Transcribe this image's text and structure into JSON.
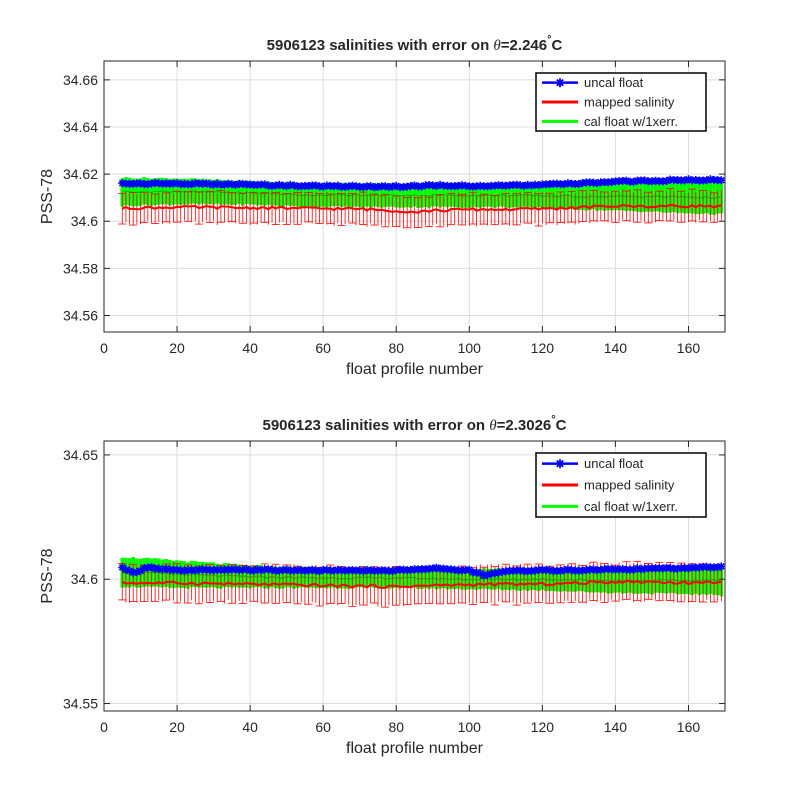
{
  "chart_data": [
    {
      "type": "line",
      "title_prefix": "5906123 salinities with error on ",
      "title_theta": "θ",
      "title_value": "=2.246",
      "title_degree": "°",
      "title_unit": "C",
      "xlabel": "float profile number",
      "ylabel": "PSS-78",
      "xlim": [
        0,
        170
      ],
      "ylim": [
        34.553,
        34.668
      ],
      "xticks": [
        0,
        20,
        40,
        60,
        80,
        100,
        120,
        140,
        160
      ],
      "yticks": [
        34.56,
        34.58,
        34.6,
        34.62,
        34.64,
        34.66
      ],
      "ytick_labels": [
        "34.56",
        "34.58",
        "34.6",
        "34.62",
        "34.64",
        "34.66"
      ],
      "grid": true,
      "legend_position": "top-right",
      "legend": [
        "uncal float",
        "mapped salinity",
        "cal float w/1xerr."
      ],
      "x_range": [
        5,
        169
      ],
      "series": [
        {
          "name": "uncal float",
          "color": "#0000ff",
          "style": "line-with-star-markers",
          "x": [
            5,
            20,
            40,
            55,
            70,
            80,
            90,
            100,
            110,
            120,
            130,
            140,
            150,
            160,
            169
          ],
          "values": [
            34.616,
            34.616,
            34.6155,
            34.615,
            34.6148,
            34.6147,
            34.6152,
            34.615,
            34.615,
            34.6155,
            34.616,
            34.6168,
            34.6172,
            34.6175,
            34.6175
          ]
        },
        {
          "name": "mapped salinity",
          "color": "#ff0000",
          "style": "line-with-errorbars",
          "x": [
            5,
            20,
            40,
            55,
            70,
            80,
            85,
            90,
            100,
            110,
            120,
            130,
            140,
            150,
            160,
            169
          ],
          "values": [
            34.6055,
            34.606,
            34.6057,
            34.6055,
            34.6052,
            34.6045,
            34.604,
            34.6045,
            34.605,
            34.605,
            34.6053,
            34.6058,
            34.6065,
            34.6063,
            34.6065,
            34.6063
          ],
          "error": 0.0065
        },
        {
          "name": "cal float w/1xerr.",
          "color": "#00ff00",
          "style": "shaded-errorbars",
          "x": [
            5,
            20,
            40,
            55,
            70,
            80,
            90,
            100,
            110,
            120,
            130,
            140,
            150,
            160,
            169
          ],
          "values": [
            34.6125,
            34.6127,
            34.612,
            34.6112,
            34.611,
            34.611,
            34.611,
            34.611,
            34.611,
            34.6108,
            34.6105,
            34.6105,
            34.6105,
            34.6103,
            34.61
          ],
          "error": [
            0.006,
            0.0055,
            0.005,
            0.005,
            0.005,
            0.005,
            0.005,
            0.005,
            0.005,
            0.0052,
            0.0055,
            0.006,
            0.0065,
            0.007,
            0.007
          ]
        }
      ]
    },
    {
      "type": "line",
      "title_prefix": "5906123 salinities with error on ",
      "title_theta": "θ",
      "title_value": "=2.3026",
      "title_degree": "°",
      "title_unit": "C",
      "xlabel": "float profile number",
      "ylabel": "PSS-78",
      "xlim": [
        0,
        170
      ],
      "ylim": [
        34.547,
        34.6556
      ],
      "xticks": [
        0,
        20,
        40,
        60,
        80,
        100,
        120,
        140,
        160
      ],
      "yticks": [
        34.55,
        34.6,
        34.65
      ],
      "ytick_labels": [
        "34.55",
        "34.6",
        "34.65"
      ],
      "grid": true,
      "legend_position": "top-right",
      "legend": [
        "uncal float",
        "mapped salinity",
        "cal float w/1xerr."
      ],
      "x_range": [
        5,
        169
      ],
      "series": [
        {
          "name": "uncal float",
          "color": "#0000ff",
          "style": "line-with-star-markers",
          "x": [
            5,
            8,
            12,
            20,
            40,
            60,
            80,
            90,
            100,
            104,
            110,
            120,
            140,
            160,
            169
          ],
          "values": [
            34.6045,
            34.6025,
            34.6048,
            34.6035,
            34.6038,
            34.6035,
            34.6035,
            34.6045,
            34.6035,
            34.6015,
            34.6035,
            34.6035,
            34.604,
            34.6045,
            34.605
          ]
        },
        {
          "name": "mapped salinity",
          "color": "#ff0000",
          "style": "line-with-errorbars",
          "x": [
            5,
            20,
            40,
            60,
            80,
            90,
            100,
            110,
            120,
            130,
            140,
            150,
            160,
            169
          ],
          "values": [
            34.5985,
            34.5985,
            34.598,
            34.5975,
            34.597,
            34.5975,
            34.5978,
            34.598,
            34.598,
            34.5985,
            34.599,
            34.599,
            34.5985,
            34.599
          ],
          "error": 0.0075
        },
        {
          "name": "cal float w/1xerr.",
          "color": "#00ff00",
          "style": "shaded-errorbars",
          "x": [
            5,
            20,
            40,
            60,
            80,
            100,
            120,
            140,
            160,
            169
          ],
          "values": [
            34.603,
            34.602,
            34.601,
            34.6005,
            34.6005,
            34.6,
            34.6,
            34.5995,
            34.5995,
            34.5995
          ],
          "error": [
            0.006,
            0.0055,
            0.0045,
            0.004,
            0.004,
            0.004,
            0.0045,
            0.005,
            0.0055,
            0.006
          ]
        }
      ]
    }
  ],
  "colors": {
    "axes": "#262626",
    "grid": "#dcdcdc",
    "uncal": "#0000ff",
    "mapped": "#ff0000",
    "cal": "#00ff00"
  }
}
